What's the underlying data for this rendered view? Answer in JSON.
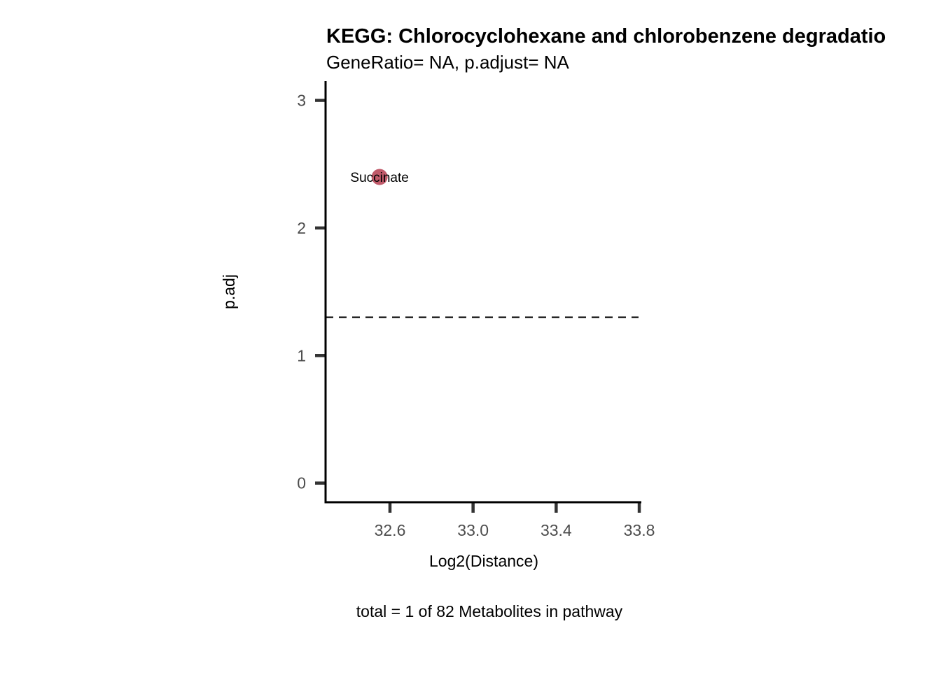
{
  "chart_data": {
    "type": "scatter",
    "title": "KEGG: Chlorocyclohexane and chlorobenzene degradatio",
    "subtitle": "GeneRatio= NA, p.adjust= NA",
    "xlabel": "Log2(Distance)",
    "ylabel": "p.adj",
    "caption": "total = 1 of 82 Metabolites in pathway",
    "xlim": [
      32.29,
      33.81
    ],
    "ylim": [
      -0.15,
      3.14
    ],
    "x_ticks": [
      32.6,
      33.0,
      33.4,
      33.8
    ],
    "x_tick_labels": [
      "32.6",
      "33.0",
      "33.4",
      "33.8"
    ],
    "y_ticks": [
      0,
      1,
      2,
      3
    ],
    "y_tick_labels": [
      "0",
      "1",
      "2",
      "3"
    ],
    "threshold_line": {
      "y": 1.3,
      "style": "dashed"
    },
    "points": [
      {
        "label": "Succinate",
        "x": 32.55,
        "y": 2.4,
        "color": "#c05a6a"
      }
    ],
    "grid": false,
    "legend": "none"
  }
}
